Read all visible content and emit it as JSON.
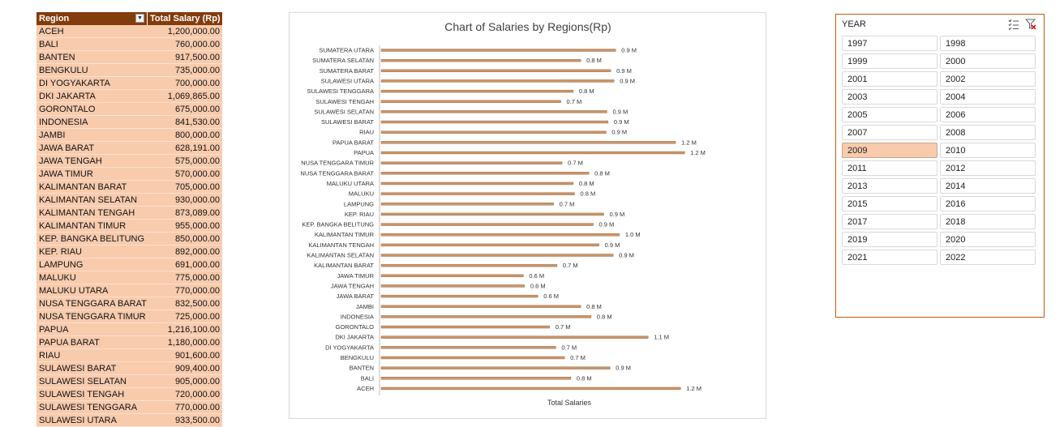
{
  "pivot": {
    "header_region": "Region",
    "header_salary": "Total Salary (Rp)",
    "rows": [
      {
        "region": "ACEH",
        "salary": "1,200,000.00"
      },
      {
        "region": "BALI",
        "salary": "760,000.00"
      },
      {
        "region": "BANTEN",
        "salary": "917,500.00"
      },
      {
        "region": "BENGKULU",
        "salary": "735,000.00"
      },
      {
        "region": "DI YOGYAKARTA",
        "salary": "700,000.00"
      },
      {
        "region": "DKI JAKARTA",
        "salary": "1,069,865.00"
      },
      {
        "region": "GORONTALO",
        "salary": "675,000.00"
      },
      {
        "region": "INDONESIA",
        "salary": "841,530.00"
      },
      {
        "region": "JAMBI",
        "salary": "800,000.00"
      },
      {
        "region": "JAWA BARAT",
        "salary": "628,191.00"
      },
      {
        "region": "JAWA TENGAH",
        "salary": "575,000.00"
      },
      {
        "region": "JAWA TIMUR",
        "salary": "570,000.00"
      },
      {
        "region": "KALIMANTAN BARAT",
        "salary": "705,000.00"
      },
      {
        "region": "KALIMANTAN SELATAN",
        "salary": "930,000.00"
      },
      {
        "region": "KALIMANTAN TENGAH",
        "salary": "873,089.00"
      },
      {
        "region": "KALIMANTAN TIMUR",
        "salary": "955,000.00"
      },
      {
        "region": "KEP. BANGKA BELITUNG",
        "salary": "850,000.00"
      },
      {
        "region": "KEP. RIAU",
        "salary": "892,000.00"
      },
      {
        "region": "LAMPUNG",
        "salary": "691,000.00"
      },
      {
        "region": "MALUKU",
        "salary": "775,000.00"
      },
      {
        "region": "MALUKU UTARA",
        "salary": "770,000.00"
      },
      {
        "region": "NUSA TENGGARA BARAT",
        "salary": "832,500.00"
      },
      {
        "region": "NUSA TENGGARA TIMUR",
        "salary": "725,000.00"
      },
      {
        "region": "PAPUA",
        "salary": "1,216,100.00"
      },
      {
        "region": "PAPUA BARAT",
        "salary": "1,180,000.00"
      },
      {
        "region": "RIAU",
        "salary": "901,600.00"
      },
      {
        "region": "SULAWESI BARAT",
        "salary": "909,400.00"
      },
      {
        "region": "SULAWESI SELATAN",
        "salary": "905,000.00"
      },
      {
        "region": "SULAWESI TENGAH",
        "salary": "720,000.00"
      },
      {
        "region": "SULAWESI TENGGARA",
        "salary": "770,000.00"
      },
      {
        "region": "SULAWESI UTARA",
        "salary": "933,500.00"
      }
    ]
  },
  "chart_data": {
    "type": "bar",
    "orientation": "horizontal",
    "title": "Chart of Salaries by Regions(Rp)",
    "xlabel": "Total Salaries",
    "ylabel": "",
    "xlim": [
      0,
      1300000
    ],
    "grid": false,
    "legend": "none",
    "bar_color": "#c8946a",
    "categories": [
      "SUMATERA UTARA",
      "SUMATERA SELATAN",
      "SUMATERA BARAT",
      "SULAWESI UTARA",
      "SULAWESI TENGGARA",
      "SULAWESI TENGAH",
      "SULAWESI SELATAN",
      "SULAWESI BARAT",
      "RIAU",
      "PAPUA BARAT",
      "PAPUA",
      "NUSA TENGGARA TIMUR",
      "NUSA TENGGARA BARAT",
      "MALUKU UTARA",
      "MALUKU",
      "LAMPUNG",
      "KEP. RIAU",
      "KEP. BANGKA BELITUNG",
      "KALIMANTAN TIMUR",
      "KALIMANTAN TENGAH",
      "KALIMANTAN SELATAN",
      "KALIMANTAN BARAT",
      "JAWA TIMUR",
      "JAWA TENGAH",
      "JAWA BARAT",
      "JAMBI",
      "INDONESIA",
      "GORONTALO",
      "DKI JAKARTA",
      "DI YOGYAKARTA",
      "BENGKULU",
      "BANTEN",
      "BALI",
      "ACEH"
    ],
    "values": [
      940000,
      800000,
      920000,
      933500,
      770000,
      720000,
      905000,
      909400,
      901600,
      1180000,
      1216100,
      725000,
      832500,
      770000,
      775000,
      691000,
      892000,
      850000,
      955000,
      873089,
      930000,
      705000,
      570000,
      575000,
      628191,
      800000,
      841530,
      675000,
      1069865,
      700000,
      735000,
      917500,
      760000,
      1200000
    ],
    "data_labels": [
      "0.9 M",
      "0.8 M",
      "0.9 M",
      "0.9 M",
      "0.8 M",
      "0.7 M",
      "0.9 M",
      "0.9 M",
      "0.9 M",
      "1.2 M",
      "1.2 M",
      "0.7 M",
      "0.8 M",
      "0.8 M",
      "0.8 M",
      "0.7 M",
      "0.9 M",
      "0.9 M",
      "1.0 M",
      "0.9 M",
      "0.9 M",
      "0.7 M",
      "0.6 M",
      "0.6 M",
      "0.6 M",
      "0.8 M",
      "0.8 M",
      "0.7 M",
      "1.1 M",
      "0.7 M",
      "0.7 M",
      "0.9 M",
      "0.8 M",
      "1.2 M"
    ]
  },
  "slicer": {
    "title": "YEAR",
    "multiselect_icon": "multi-select-icon",
    "clear_icon": "clear-filter-icon",
    "selected": "2009",
    "items": [
      "1997",
      "1998",
      "1999",
      "2000",
      "2001",
      "2002",
      "2003",
      "2004",
      "2005",
      "2006",
      "2007",
      "2008",
      "2009",
      "2010",
      "2011",
      "2012",
      "2013",
      "2014",
      "2015",
      "2016",
      "2017",
      "2018",
      "2019",
      "2020",
      "2021",
      "2022"
    ]
  },
  "colors": {
    "header_bg": "#833c0b",
    "row_bg": "#f8cbad",
    "slicer_border": "#c55a11",
    "bar": "#c8946a"
  }
}
